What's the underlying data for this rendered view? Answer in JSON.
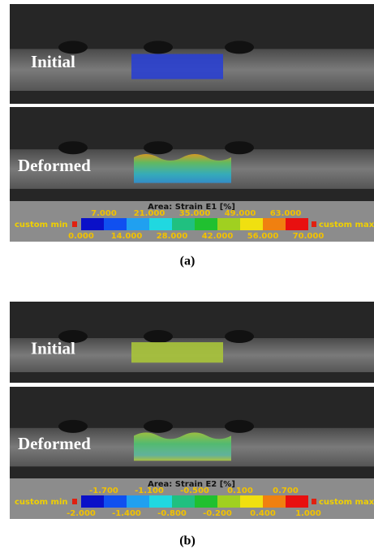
{
  "panels": [
    {
      "caption": "(a)",
      "initial_label": "Initial",
      "deformed_label": "Deformed",
      "colorbar": {
        "title": "Area: Strain E1 [%]",
        "min_label": "custom min",
        "max_label": "custom max",
        "top_ticks": [
          "7.000",
          "21.000",
          "35.000",
          "49.000",
          "63.000"
        ],
        "bottom_ticks": [
          "0.000",
          "14.000",
          "28.000",
          "42.000",
          "56.000",
          "70.000"
        ]
      }
    },
    {
      "caption": "(b)",
      "initial_label": "Initial",
      "deformed_label": "Deformed",
      "colorbar": {
        "title": "Area: Strain E2 [%]",
        "min_label": "custom min",
        "max_label": "custom max",
        "top_ticks": [
          "-1.700",
          "-1.100",
          "-0.500",
          "0.100",
          "0.700"
        ],
        "bottom_ticks": [
          "-2.000",
          "-1.400",
          "-0.800",
          "-0.200",
          "0.400",
          "1.000"
        ]
      }
    }
  ]
}
